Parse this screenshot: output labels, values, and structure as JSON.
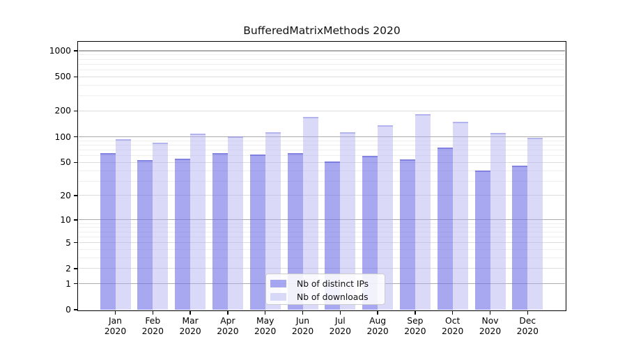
{
  "chart_data": {
    "type": "bar",
    "title": "BufferedMatrixMethods 2020",
    "scale": "log(1+y)",
    "grid": true,
    "ylim": [
      0,
      1250
    ],
    "yticks": [
      0,
      1,
      2,
      5,
      10,
      20,
      50,
      100,
      200,
      500,
      1000
    ],
    "minor_grid_values": [
      3,
      4,
      6,
      7,
      8,
      9,
      30,
      40,
      60,
      70,
      80,
      90,
      300,
      400,
      600,
      700,
      800,
      900
    ],
    "x_ticklabels": [
      [
        "Jan",
        "2020"
      ],
      [
        "Feb",
        "2020"
      ],
      [
        "Mar",
        "2020"
      ],
      [
        "Apr",
        "2020"
      ],
      [
        "May",
        "2020"
      ],
      [
        "Jun",
        "2020"
      ],
      [
        "Jul",
        "2020"
      ],
      [
        "Aug",
        "2020"
      ],
      [
        "Sep",
        "2020"
      ],
      [
        "Oct",
        "2020"
      ],
      [
        "Nov",
        "2020"
      ],
      [
        "Dec",
        "2020"
      ]
    ],
    "series": [
      {
        "key": "ips",
        "name": "Nb of distinct IPs",
        "values": [
          64,
          53,
          55,
          64,
          62,
          64,
          51,
          60,
          54,
          75,
          40,
          46
        ]
      },
      {
        "key": "downloads",
        "name": "Nb of downloads",
        "values": [
          93,
          86,
          109,
          101,
          112,
          170,
          114,
          135,
          185,
          150,
          110,
          98
        ]
      }
    ],
    "legend": {
      "position": "lower center, inside plot",
      "entries": [
        {
          "label": "Nb of distinct IPs",
          "series": "ips"
        },
        {
          "label": "Nb of downloads",
          "series": "downloads"
        }
      ]
    },
    "colors": {
      "ips": "rgba(110,110,230,0.6)",
      "ips_edge": "rgba(92,92,208,0.5)",
      "downloads": "rgba(172,172,240,0.45)",
      "downloads_edge": "rgba(120,120,220,0.4)",
      "grid_major": "#ababab",
      "grid_mid": "#dcdcdc",
      "grid_minor": "#eeeeee",
      "axis": "#000000",
      "text": "#111111"
    }
  }
}
